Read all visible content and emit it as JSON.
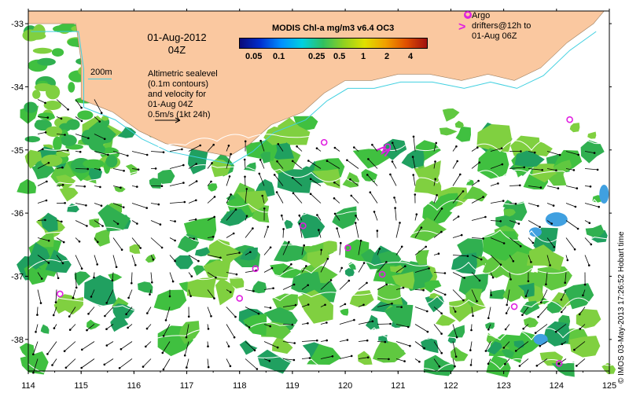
{
  "product_title": "MODIS Chl-a mg/m3 v6.4 OC3",
  "date": "01-Aug-2012",
  "time": "04Z",
  "legend_depth": "200m",
  "legend_sealevel": [
    "Altimetric sealevel",
    "(0.1m contours)",
    "and velocity for",
    "01-Aug 04Z",
    "0.5m/s (1kt 24h)"
  ],
  "legend_argo": [
    "Argo",
    "drifters@12h to",
    "01-Aug 06Z"
  ],
  "argo_symbol": ">",
  "credit": "© IMOS 03-May-2013 17:26:52 Hobart time",
  "colorbar": {
    "ticks": [
      "0.05",
      "0.1",
      "0.25",
      "0.5",
      "1",
      "2",
      "4"
    ],
    "colors": [
      "#0a0a7a",
      "#0030d0",
      "#0090ff",
      "#00d0e0",
      "#30c060",
      "#90d020",
      "#e0e000",
      "#f0a000",
      "#e05000",
      "#a01010"
    ]
  },
  "x_ticks": [
    "114",
    "115",
    "116",
    "117",
    "118",
    "119",
    "120",
    "121",
    "122",
    "123",
    "124",
    "125"
  ],
  "y_ticks": [
    "-33",
    "-34",
    "-35",
    "-36",
    "-37",
    "-38"
  ],
  "colors": {
    "land": "#fac8a0",
    "chl_green": "#40c040",
    "chl_light": "#80d040",
    "chl_blue": "#40a0e0",
    "argo": "#e020e0",
    "contour": "#40d0e0"
  },
  "argo_positions": [
    [
      118.0,
      -37.35
    ],
    [
      118.3,
      -36.88
    ],
    [
      119.2,
      -36.2
    ],
    [
      120.05,
      -36.55
    ],
    [
      120.7,
      -36.97
    ],
    [
      120.8,
      -34.95
    ],
    [
      119.6,
      -34.88
    ],
    [
      114.6,
      -37.28
    ],
    [
      123.2,
      -37.48
    ],
    [
      124.05,
      -38.38
    ],
    [
      124.25,
      -34.52
    ],
    [
      122.32,
      -32.85
    ]
  ]
}
